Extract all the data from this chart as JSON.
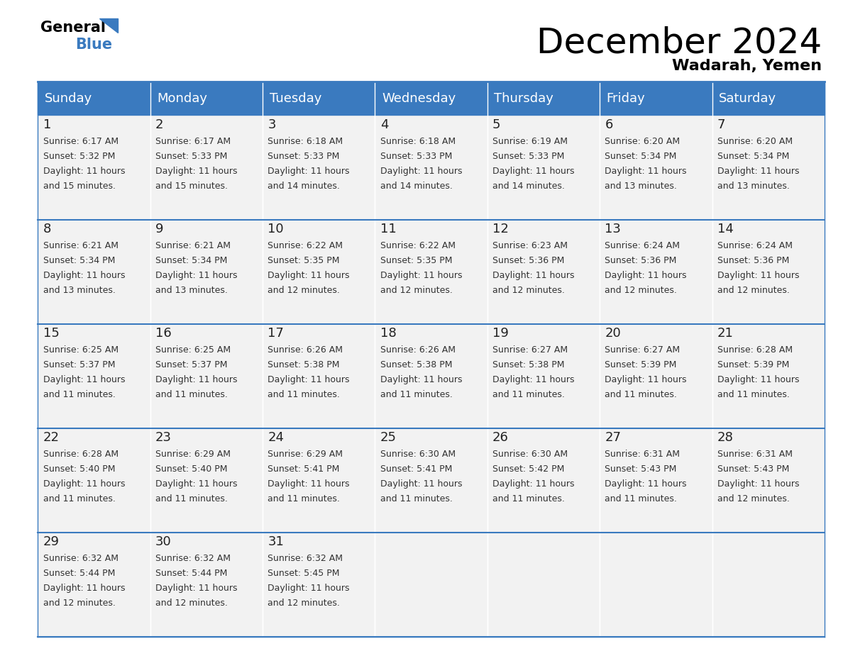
{
  "title": "December 2024",
  "subtitle": "Wadarah, Yemen",
  "header_color": "#3a7abf",
  "header_text_color": "#ffffff",
  "cell_bg_color": "#f2f2f2",
  "text_color": "#333333",
  "line_color": "#3a7abf",
  "days_of_week": [
    "Sunday",
    "Monday",
    "Tuesday",
    "Wednesday",
    "Thursday",
    "Friday",
    "Saturday"
  ],
  "weeks": [
    [
      {
        "day": 1,
        "sunrise": "6:17 AM",
        "sunset": "5:32 PM",
        "daylight": "11 hours and 15 minutes."
      },
      {
        "day": 2,
        "sunrise": "6:17 AM",
        "sunset": "5:33 PM",
        "daylight": "11 hours and 15 minutes."
      },
      {
        "day": 3,
        "sunrise": "6:18 AM",
        "sunset": "5:33 PM",
        "daylight": "11 hours and 14 minutes."
      },
      {
        "day": 4,
        "sunrise": "6:18 AM",
        "sunset": "5:33 PM",
        "daylight": "11 hours and 14 minutes."
      },
      {
        "day": 5,
        "sunrise": "6:19 AM",
        "sunset": "5:33 PM",
        "daylight": "11 hours and 14 minutes."
      },
      {
        "day": 6,
        "sunrise": "6:20 AM",
        "sunset": "5:34 PM",
        "daylight": "11 hours and 13 minutes."
      },
      {
        "day": 7,
        "sunrise": "6:20 AM",
        "sunset": "5:34 PM",
        "daylight": "11 hours and 13 minutes."
      }
    ],
    [
      {
        "day": 8,
        "sunrise": "6:21 AM",
        "sunset": "5:34 PM",
        "daylight": "11 hours and 13 minutes."
      },
      {
        "day": 9,
        "sunrise": "6:21 AM",
        "sunset": "5:34 PM",
        "daylight": "11 hours and 13 minutes."
      },
      {
        "day": 10,
        "sunrise": "6:22 AM",
        "sunset": "5:35 PM",
        "daylight": "11 hours and 12 minutes."
      },
      {
        "day": 11,
        "sunrise": "6:22 AM",
        "sunset": "5:35 PM",
        "daylight": "11 hours and 12 minutes."
      },
      {
        "day": 12,
        "sunrise": "6:23 AM",
        "sunset": "5:36 PM",
        "daylight": "11 hours and 12 minutes."
      },
      {
        "day": 13,
        "sunrise": "6:24 AM",
        "sunset": "5:36 PM",
        "daylight": "11 hours and 12 minutes."
      },
      {
        "day": 14,
        "sunrise": "6:24 AM",
        "sunset": "5:36 PM",
        "daylight": "11 hours and 12 minutes."
      }
    ],
    [
      {
        "day": 15,
        "sunrise": "6:25 AM",
        "sunset": "5:37 PM",
        "daylight": "11 hours and 11 minutes."
      },
      {
        "day": 16,
        "sunrise": "6:25 AM",
        "sunset": "5:37 PM",
        "daylight": "11 hours and 11 minutes."
      },
      {
        "day": 17,
        "sunrise": "6:26 AM",
        "sunset": "5:38 PM",
        "daylight": "11 hours and 11 minutes."
      },
      {
        "day": 18,
        "sunrise": "6:26 AM",
        "sunset": "5:38 PM",
        "daylight": "11 hours and 11 minutes."
      },
      {
        "day": 19,
        "sunrise": "6:27 AM",
        "sunset": "5:38 PM",
        "daylight": "11 hours and 11 minutes."
      },
      {
        "day": 20,
        "sunrise": "6:27 AM",
        "sunset": "5:39 PM",
        "daylight": "11 hours and 11 minutes."
      },
      {
        "day": 21,
        "sunrise": "6:28 AM",
        "sunset": "5:39 PM",
        "daylight": "11 hours and 11 minutes."
      }
    ],
    [
      {
        "day": 22,
        "sunrise": "6:28 AM",
        "sunset": "5:40 PM",
        "daylight": "11 hours and 11 minutes."
      },
      {
        "day": 23,
        "sunrise": "6:29 AM",
        "sunset": "5:40 PM",
        "daylight": "11 hours and 11 minutes."
      },
      {
        "day": 24,
        "sunrise": "6:29 AM",
        "sunset": "5:41 PM",
        "daylight": "11 hours and 11 minutes."
      },
      {
        "day": 25,
        "sunrise": "6:30 AM",
        "sunset": "5:41 PM",
        "daylight": "11 hours and 11 minutes."
      },
      {
        "day": 26,
        "sunrise": "6:30 AM",
        "sunset": "5:42 PM",
        "daylight": "11 hours and 11 minutes."
      },
      {
        "day": 27,
        "sunrise": "6:31 AM",
        "sunset": "5:43 PM",
        "daylight": "11 hours and 11 minutes."
      },
      {
        "day": 28,
        "sunrise": "6:31 AM",
        "sunset": "5:43 PM",
        "daylight": "11 hours and 12 minutes."
      }
    ],
    [
      {
        "day": 29,
        "sunrise": "6:32 AM",
        "sunset": "5:44 PM",
        "daylight": "11 hours and 12 minutes."
      },
      {
        "day": 30,
        "sunrise": "6:32 AM",
        "sunset": "5:44 PM",
        "daylight": "11 hours and 12 minutes."
      },
      {
        "day": 31,
        "sunrise": "6:32 AM",
        "sunset": "5:45 PM",
        "daylight": "11 hours and 12 minutes."
      },
      null,
      null,
      null,
      null
    ]
  ],
  "title_fontsize": 36,
  "subtitle_fontsize": 16,
  "header_fontsize": 13,
  "day_num_fontsize": 13,
  "cell_text_fontsize": 9
}
